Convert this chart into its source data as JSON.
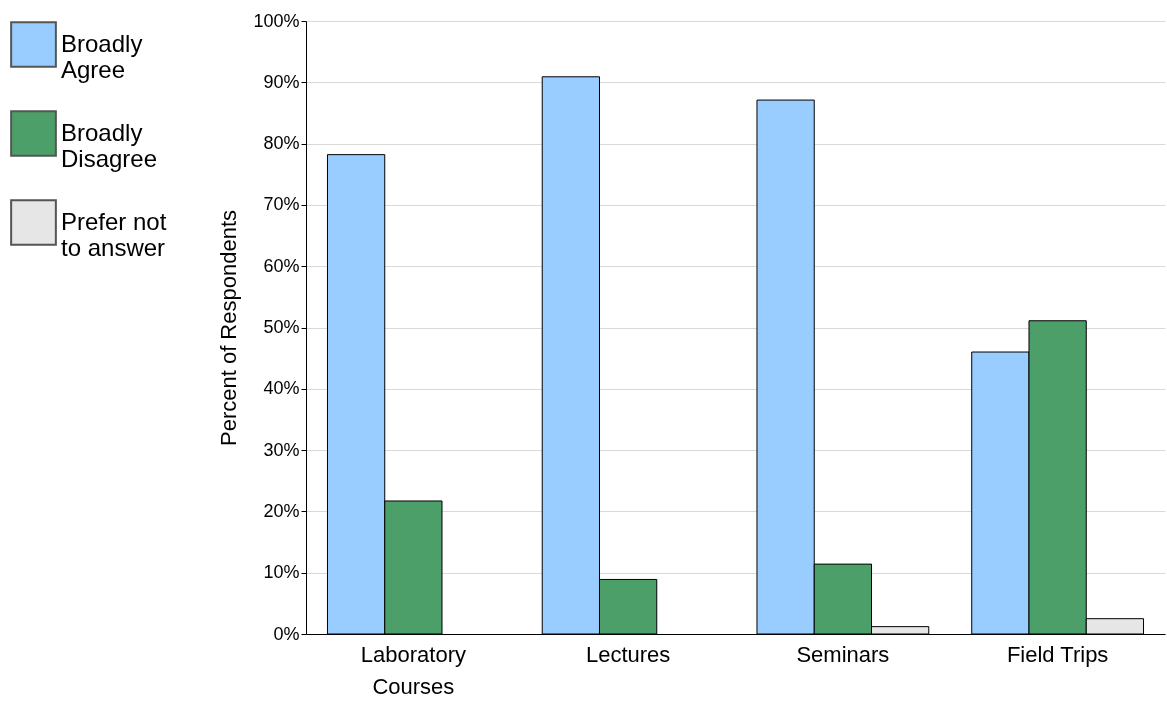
{
  "chart_data": {
    "type": "bar",
    "ylabel": "Percent of Respondents",
    "categories": [
      "Laboratory Courses",
      "Lectures",
      "Seminars",
      "Field Trips"
    ],
    "series": [
      {
        "name": "Broadly Agree",
        "color": "#99ccff",
        "values": [
          78.2,
          90.9,
          87.1,
          46
        ]
      },
      {
        "name": "Broadly Disagree",
        "color": "#4c9f68",
        "values": [
          21.7,
          8.9,
          11.4,
          51.1
        ]
      },
      {
        "name": "Prefer not to answer",
        "color": "#e6e6e6",
        "values": [
          0,
          0,
          1.2,
          2.5
        ]
      }
    ],
    "ylim": [
      0,
      100
    ],
    "yticks": [
      {
        "value": 0,
        "label": "0%"
      },
      {
        "value": 10,
        "label": "10%"
      },
      {
        "value": 20,
        "label": "20%"
      },
      {
        "value": 30,
        "label": "30%"
      },
      {
        "value": 40,
        "label": "40%"
      },
      {
        "value": 50,
        "label": "50%"
      },
      {
        "value": 60,
        "label": "60%"
      },
      {
        "value": 70,
        "label": "70%"
      },
      {
        "value": 80,
        "label": "80%"
      },
      {
        "value": 90,
        "label": "90%"
      },
      {
        "value": 100,
        "label": "100%"
      }
    ],
    "grid": "y",
    "legend": "left"
  }
}
